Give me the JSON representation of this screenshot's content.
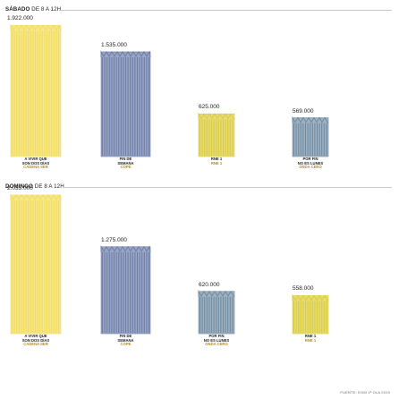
{
  "source": "FUENTE: EGM 1ª OLA 2019",
  "colors": {
    "first": "#f2dc5a",
    "second": "#6e7da8",
    "third": "#d9cc3a",
    "fourth": "#6f8aa0",
    "rule": "#c8c8c8"
  },
  "chart_data": [
    {
      "type": "bar",
      "title_bold": "SÁBADO",
      "title_rest": "DE 8 A 12H",
      "categories": [
        "A vivir que son dos días",
        "Fin de semana",
        "RNE 1",
        "Por fin no es lunes"
      ],
      "values": [
        1922000,
        1535000,
        625000,
        569000
      ],
      "value_labels": [
        "1.922.000",
        "1.535.000",
        "625.000",
        "569.000"
      ],
      "labels": [
        {
          "main": [
            "A VIVIR QUE",
            "SON DOS DÍAS"
          ],
          "station": "CADENA SER"
        },
        {
          "main": [
            "FIN DE",
            "SEMANA"
          ],
          "station": "COPE"
        },
        {
          "main": [
            "RNE 1"
          ],
          "station": "RNE 1"
        },
        {
          "main": [
            "POR FIN",
            "NO ES LUNES"
          ],
          "station": "ONDA CERO"
        }
      ],
      "ylim": [
        0,
        2033000
      ]
    },
    {
      "type": "bar",
      "title_bold": "DOMINGO",
      "title_rest": "DE 8 A 12H",
      "categories": [
        "A vivir que son dos días",
        "Fin de semana",
        "Por fin no es lunes",
        "RNE 1"
      ],
      "values": [
        2033000,
        1275000,
        620000,
        558000
      ],
      "value_labels": [
        "2.033.000",
        "1.275.000",
        "620.000",
        "558.000"
      ],
      "labels": [
        {
          "main": [
            "A VIVIR QUE",
            "SON DOS DÍAS"
          ],
          "station": "CADENA SER"
        },
        {
          "main": [
            "FIN DE",
            "SEMANA"
          ],
          "station": "COPE"
        },
        {
          "main": [
            "POR FIN",
            "NO ES LUNES"
          ],
          "station": "ONDA CERO"
        },
        {
          "main": [
            "RNE 1"
          ],
          "station": "RNE 1"
        }
      ],
      "ylim": [
        0,
        2033000
      ]
    }
  ]
}
